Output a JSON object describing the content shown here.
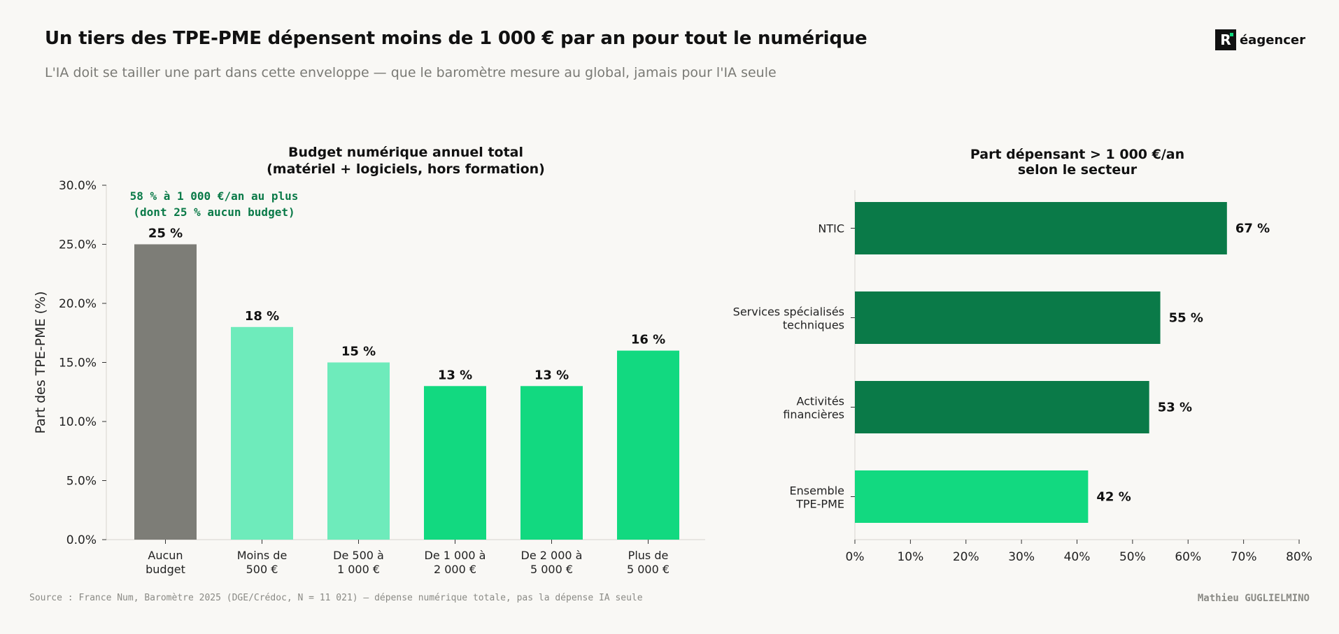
{
  "header": {
    "title": "Un tiers des TPE-PME dépensent moins de 1 000 € par an pour tout le numérique",
    "subtitle": "L'IA doit se tailler une part dans cette enveloppe — que le baromètre mesure au global, jamais pour l'IA seule"
  },
  "brand": {
    "mark": "R",
    "name": "éagencer"
  },
  "footer": {
    "source": "Source : France Num, Baromètre 2025 (DGE/Crédoc, N = 11 021) — dépense numérique totale, pas la dépense IA seule",
    "author": "Mathieu GUGLIELMINO"
  },
  "chart_data": [
    {
      "type": "bar",
      "title": [
        "Budget numérique annuel total",
        "(matériel + logiciels, hors formation)"
      ],
      "ylabel": "Part des TPE-PME (%)",
      "ylim": [
        0,
        30
      ],
      "yticks": [
        0,
        5,
        10,
        15,
        20,
        25,
        30
      ],
      "ytick_labels": [
        "0.0%",
        "5.0%",
        "10.0%",
        "15.0%",
        "20.0%",
        "25.0%",
        "30.0%"
      ],
      "categories": [
        [
          "Aucun",
          "budget"
        ],
        [
          "Moins de",
          "500 €"
        ],
        [
          "De 500 à",
          "1 000 €"
        ],
        [
          "De 1 000 à",
          "2 000 €"
        ],
        [
          "De 2 000 à",
          "5 000 €"
        ],
        [
          "Plus de",
          "5 000 €"
        ]
      ],
      "values": [
        25,
        18,
        15,
        13,
        13,
        16
      ],
      "data_labels": [
        "25 %",
        "18 %",
        "15 %",
        "13 %",
        "13 %",
        "16 %"
      ],
      "colors": [
        "#7d7d77",
        "#6eebbb",
        "#6eebbb",
        "#12d980",
        "#12d980",
        "#12d980"
      ],
      "annotation": [
        "58 % à 1 000 €/an au plus",
        "(dont 25 % aucun budget)"
      ],
      "annotation_color": "#0a7a48",
      "grid": false
    },
    {
      "type": "bar",
      "orientation": "horizontal",
      "title": [
        "Part dépensant > 1 000 €/an",
        "selon le secteur"
      ],
      "xlim": [
        0,
        80
      ],
      "xticks": [
        0,
        10,
        20,
        30,
        40,
        50,
        60,
        70,
        80
      ],
      "xtick_labels": [
        "0%",
        "10%",
        "20%",
        "30%",
        "40%",
        "50%",
        "60%",
        "70%",
        "80%"
      ],
      "categories": [
        [
          "NTIC"
        ],
        [
          "Services spécialisés",
          "techniques"
        ],
        [
          "Activités",
          "financières"
        ],
        [
          "Ensemble",
          "TPE-PME"
        ]
      ],
      "values": [
        67,
        55,
        53,
        42
      ],
      "data_labels": [
        "67 %",
        "55 %",
        "53 %",
        "42 %"
      ],
      "colors": [
        "#0a7a48",
        "#0a7a48",
        "#0a7a48",
        "#12d980"
      ],
      "grid": false
    }
  ]
}
